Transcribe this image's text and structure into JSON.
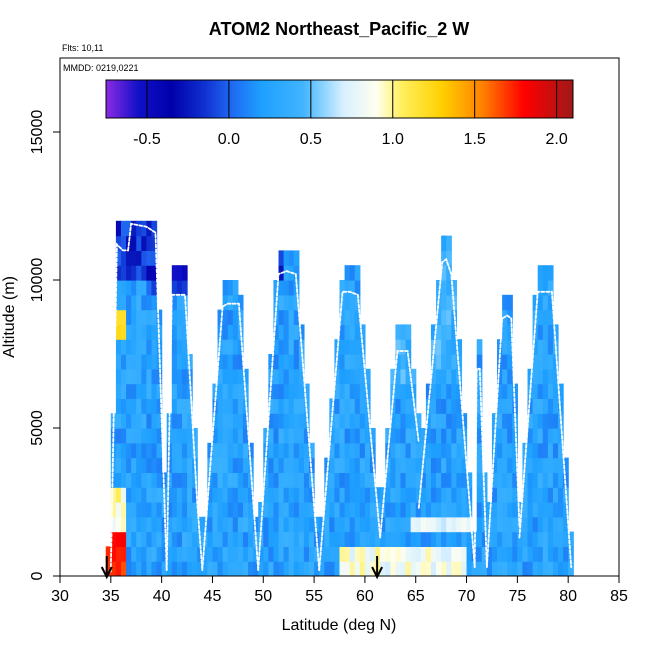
{
  "chart_data": {
    "type": "heatmap",
    "title": "ATOM2 Northeast_Pacific_2 W",
    "flights_label": "Flts: 10,11",
    "mmdd_label": "MMDD: 0219,0221",
    "xlabel": "Latitude (deg N)",
    "ylabel": "Altitude (m)",
    "xlim": [
      30,
      85
    ],
    "ylim": [
      0,
      17500
    ],
    "xticks": [
      30,
      35,
      40,
      45,
      50,
      55,
      60,
      65,
      70,
      75,
      80,
      85
    ],
    "yticks": [
      0,
      5000,
      10000,
      15000
    ],
    "colorbar": {
      "range": [
        -0.75,
        2.1
      ],
      "ticks": [
        -0.5,
        0.0,
        0.5,
        1.0,
        1.5,
        2.0
      ],
      "tick_labels": [
        "-0.5",
        "0.0",
        "0.5",
        "1.0",
        "1.5",
        "2.0"
      ],
      "stops": [
        {
          "v": -0.75,
          "c": "#8a2be2"
        },
        {
          "v": -0.55,
          "c": "#1010c8"
        },
        {
          "v": -0.35,
          "c": "#0000aa"
        },
        {
          "v": -0.15,
          "c": "#1030d0"
        },
        {
          "v": 0.0,
          "c": "#1e64f0"
        },
        {
          "v": 0.2,
          "c": "#1ea0ff"
        },
        {
          "v": 0.45,
          "c": "#40b4ff"
        },
        {
          "v": 0.7,
          "c": "#d8f0ff"
        },
        {
          "v": 0.9,
          "c": "#fffff0"
        },
        {
          "v": 1.05,
          "c": "#fff060"
        },
        {
          "v": 1.3,
          "c": "#ffd000"
        },
        {
          "v": 1.55,
          "c": "#ff8000"
        },
        {
          "v": 1.8,
          "c": "#ff0000"
        },
        {
          "v": 2.1,
          "c": "#a01818"
        }
      ]
    },
    "bins": {
      "lat_start": 34.5,
      "lat_end": 80.5,
      "lat_step": 0.5,
      "alt_step": 500,
      "alt_top": 12000
    },
    "profiles": [
      {
        "lat": [
          35.0,
          35.6,
          36.2,
          36.7
        ],
        "alt": [
          150,
          11200,
          11000,
          11000
        ]
      },
      {
        "lat": [
          36.7,
          37.0,
          38.5,
          39.4,
          40.5
        ],
        "alt": [
          11000,
          11900,
          11800,
          11600,
          200
        ]
      },
      {
        "lat": [
          40.5,
          41.0,
          42.3,
          43.5,
          44.0
        ],
        "alt": [
          200,
          9500,
          9500,
          2500,
          200
        ]
      },
      {
        "lat": [
          44.0,
          46.0,
          46.5,
          47.6,
          49.5
        ],
        "alt": [
          200,
          9100,
          9200,
          9200,
          200
        ]
      },
      {
        "lat": [
          49.5,
          51.5,
          52.3,
          53.2,
          55.5
        ],
        "alt": [
          200,
          10200,
          10300,
          10200,
          200
        ]
      },
      {
        "lat": [
          55.5,
          57.8,
          58.5,
          59.3,
          61.5
        ],
        "alt": [
          200,
          9600,
          9600,
          9500,
          1300
        ]
      },
      {
        "lat": [
          61.5,
          63.2,
          63.7,
          64.2,
          65.3
        ],
        "alt": [
          1300,
          7600,
          7600,
          7600,
          4500
        ]
      },
      {
        "lat": [
          65.3,
          67.6,
          68.0,
          68.5,
          70.8
        ],
        "alt": [
          2300,
          10600,
          10700,
          10200,
          300
        ]
      },
      {
        "lat": [
          70.8,
          71.0,
          71.3,
          72.0
        ],
        "alt": [
          300,
          7000,
          7000,
          300
        ]
      },
      {
        "lat": [
          72.0,
          73.5,
          74.0,
          74.4,
          75.2
        ],
        "alt": [
          300,
          8700,
          8800,
          8700,
          1700
        ]
      },
      {
        "lat": [
          75.2,
          77.0,
          77.6,
          78.4,
          80.3
        ],
        "alt": [
          1300,
          9600,
          9600,
          9600,
          300
        ]
      }
    ],
    "markers": [
      {
        "lat": 34.6,
        "label": "down-arrow"
      },
      {
        "lat": 61.2,
        "label": "down-arrow"
      }
    ]
  }
}
